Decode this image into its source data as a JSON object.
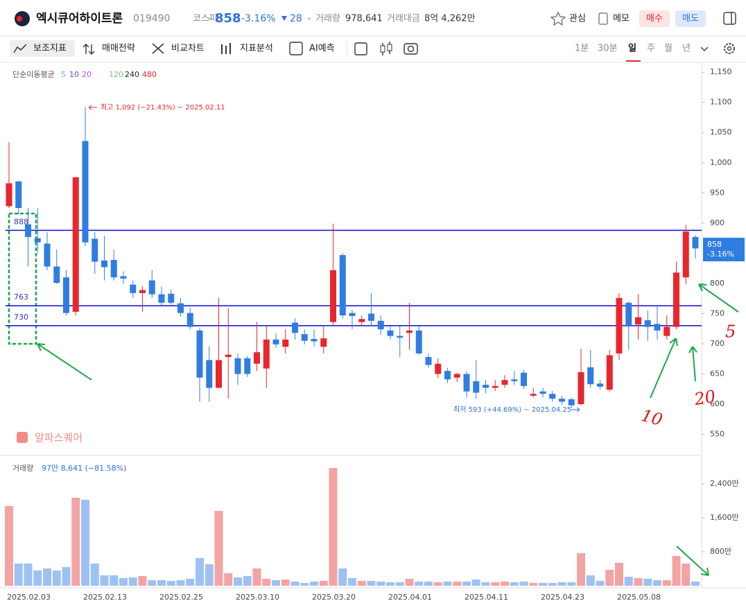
{
  "header": {
    "name": "엑시큐어하이트론",
    "code": "019490",
    "market": "코스피",
    "price": "858",
    "change_rate": "-3.16%",
    "change": "28",
    "volume_label": "거래량",
    "volume": "978,641",
    "amount_label": "거래대금",
    "amount": "8억 4,262만",
    "buttons": [
      "관심",
      "메모",
      "매수",
      "매도"
    ]
  },
  "toolbar": {
    "tools": [
      "보조지표",
      "매매전략",
      "비교차트",
      "지표분석",
      "AI예측"
    ],
    "periods": [
      "1분",
      "30분",
      "일",
      "주",
      "월",
      "년"
    ]
  },
  "chart_data": [
    {
      "type": "candlestick",
      "categories": [
        "2025.02.03",
        null,
        null,
        null,
        null,
        null,
        null,
        null,
        "2025.02.13",
        null,
        null,
        null,
        null,
        null,
        null,
        null,
        "2025.02.25",
        null,
        null,
        null,
        null,
        null,
        null,
        null,
        "2025.03.10",
        null,
        null,
        null,
        null,
        null,
        null,
        null,
        "2025.03.20",
        null,
        null,
        null,
        null,
        null,
        null,
        null,
        "2025.04.01",
        null,
        null,
        null,
        null,
        null,
        null,
        null,
        "2025.04.11",
        null,
        null,
        null,
        null,
        null,
        null,
        null,
        "2025.04.23",
        null,
        null,
        null,
        null,
        null,
        null,
        null,
        "2025.05.08",
        null,
        null,
        null,
        null,
        null,
        null,
        null,
        null
      ],
      "open": [
        928,
        969,
        898,
        875,
        866,
        828,
        810,
        753,
        1036,
        874,
        838,
        839,
        812,
        798,
        784,
        805,
        782,
        783,
        767,
        751,
        722,
        673,
        627,
        678,
        676,
        676,
        667,
        659,
        707,
        695,
        735,
        716,
        708,
        695,
        736,
        847,
        751,
        736,
        750,
        738,
        722,
        713,
        718,
        722,
        678,
        650,
        655,
        644,
        650,
        638,
        632,
        627,
        632,
        641,
        652,
        614,
        621,
        617,
        609,
        608,
        600,
        661,
        634,
        624,
        684,
        768,
        732,
        739,
        733,
        713,
        728,
        810,
        877
      ],
      "high": [
        1034,
        970,
        925,
        925,
        885,
        856,
        822,
        976,
        1092,
        885,
        879,
        856,
        820,
        805,
        795,
        822,
        795,
        790,
        776,
        760,
        726,
        696,
        776,
        759,
        684,
        680,
        736,
        730,
        717,
        724,
        742,
        724,
        724,
        730,
        899,
        850,
        756,
        747,
        784,
        747,
        730,
        730,
        768,
        730,
        684,
        676,
        660,
        652,
        655,
        673,
        640,
        640,
        648,
        655,
        657,
        627,
        627,
        622,
        614,
        611,
        692,
        690,
        640,
        690,
        784,
        770,
        782,
        755,
        764,
        747,
        836,
        897,
        880
      ],
      "low": [
        925,
        914,
        828,
        851,
        822,
        799,
        747,
        747,
        862,
        816,
        805,
        805,
        799,
        776,
        753,
        776,
        764,
        765,
        745,
        724,
        604,
        604,
        627,
        609,
        632,
        645,
        655,
        627,
        693,
        684,
        707,
        699,
        695,
        684,
        730,
        742,
        724,
        730,
        730,
        715,
        707,
        678,
        690,
        682,
        660,
        643,
        635,
        637,
        611,
        609,
        618,
        622,
        627,
        632,
        625,
        611,
        611,
        604,
        599,
        593,
        598,
        627,
        624,
        621,
        673,
        690,
        707,
        705,
        707,
        707,
        724,
        799,
        841
      ],
      "close": [
        966,
        925,
        877,
        868,
        828,
        801,
        751,
        976,
        868,
        836,
        827,
        810,
        808,
        784,
        789,
        782,
        768,
        768,
        751,
        728,
        644,
        627,
        673,
        682,
        650,
        650,
        686,
        707,
        699,
        707,
        718,
        705,
        704,
        709,
        822,
        747,
        746,
        741,
        738,
        724,
        713,
        710,
        722,
        684,
        665,
        667,
        641,
        650,
        621,
        619,
        627,
        630,
        640,
        638,
        630,
        617,
        617,
        609,
        604,
        598,
        653,
        633,
        629,
        681,
        776,
        730,
        744,
        728,
        722,
        728,
        818,
        886,
        858
      ],
      "up_color": "#e8262b",
      "down_color": "#2f7de1",
      "ylim": [
        515,
        1164
      ],
      "yticks": [
        550,
        600,
        650,
        700,
        750,
        800,
        900,
        {
          "value": 950,
          "label": "950"
        },
        {
          "value": 1000,
          "label": "1,000"
        },
        {
          "value": 1050,
          "label": "1,050"
        },
        {
          "value": 1100,
          "label": "1,100"
        },
        {
          "value": 1150,
          "label": "1,150"
        }
      ],
      "hlines": [
        888,
        763,
        730
      ],
      "hline_color": "#1c1cd6",
      "legend": {
        "title": "단순이동평균",
        "periods": [
          "5",
          "10",
          "20",
          "120",
          "240",
          "480"
        ]
      },
      "annotations": {
        "high": "최고 1,092 (−21.43%) − 2025.02.11",
        "low": "최저 593 (+44.69%) − 2025.04.25",
        "price_tag": "858",
        "price_tag_change": "-3.16%",
        "watermark": "알파스퀘어",
        "hand_labels": [
          "5",
          "10",
          "20"
        ]
      }
    },
    {
      "type": "bar",
      "title": "거래량",
      "subtitle": "97만 8,641 (−81.58%)",
      "values": [
        1878,
        523,
        523,
        359,
        408,
        359,
        441,
        2074,
        2025,
        523,
        245,
        245,
        180,
        196,
        229,
        131,
        131,
        114,
        131,
        163,
        653,
        506,
        1764,
        294,
        196,
        229,
        408,
        163,
        131,
        147,
        98,
        65,
        98,
        114,
        2776,
        408,
        180,
        114,
        114,
        98,
        82,
        82,
        163,
        98,
        98,
        82,
        98,
        98,
        98,
        147,
        82,
        82,
        98,
        82,
        98,
        65,
        65,
        65,
        82,
        82,
        768,
        245,
        114,
        376,
        539,
        212,
        180,
        163,
        131,
        131,
        702,
        523,
        97.8641
      ],
      "up_color": "#f4a3a3",
      "down_color": "#9dc1f2",
      "ylim": [
        0,
        3070
      ],
      "yticks": [
        {
          "value": 800,
          "label": "800만"
        },
        {
          "value": 1600,
          "label": "1,600만"
        },
        {
          "value": 2400,
          "label": "2,400만"
        }
      ]
    }
  ]
}
